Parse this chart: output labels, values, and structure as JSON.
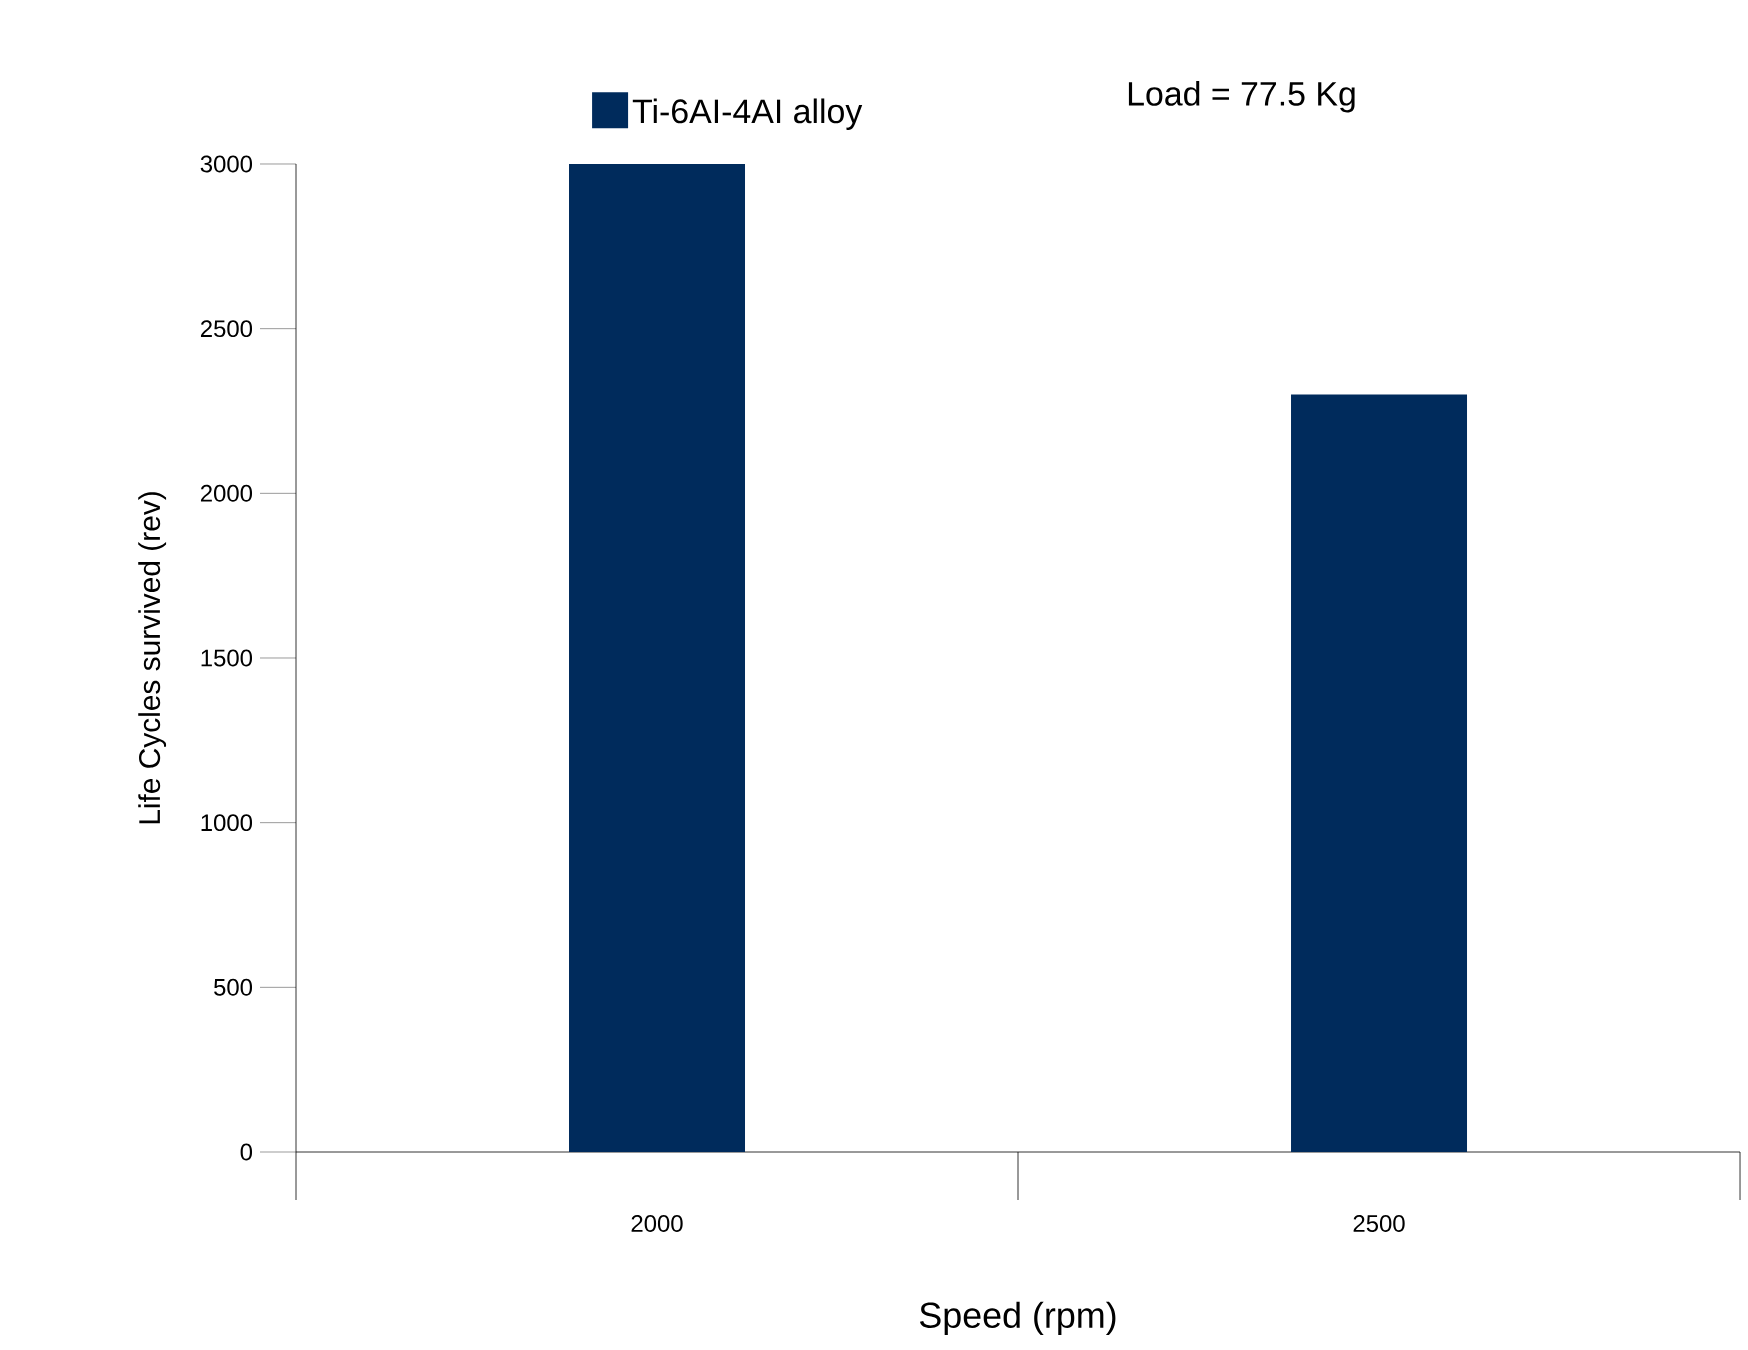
{
  "chart_data": {
    "type": "bar",
    "xlabel": "Speed (rpm)",
    "ylabel": "Life Cycles survived (rev)",
    "categories": [
      "2000",
      "2500"
    ],
    "series": [
      {
        "name": "Ti-6AI-4AI alloy",
        "color": "#002b5c",
        "values": [
          3000,
          2300
        ]
      }
    ],
    "annotations": [
      "Load = 77.5 Kg"
    ],
    "ylim": [
      0,
      3000
    ],
    "yticks": [
      0,
      500,
      1000,
      1500,
      2000,
      2500,
      3000
    ],
    "grid": false,
    "legend": "top"
  }
}
